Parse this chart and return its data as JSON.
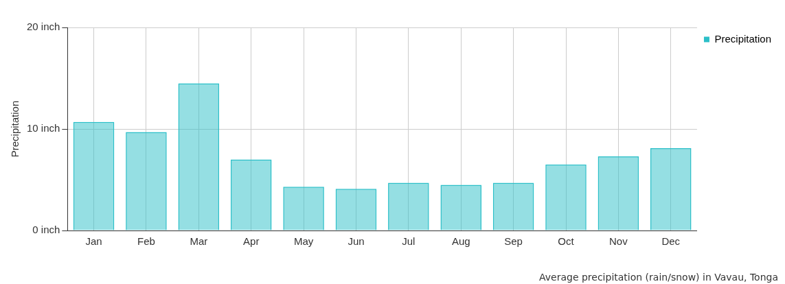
{
  "chart_data": {
    "type": "bar",
    "ylabel": "Precipitation",
    "categories": [
      "Jan",
      "Feb",
      "Mar",
      "Apr",
      "May",
      "Jun",
      "Jul",
      "Aug",
      "Sep",
      "Oct",
      "Nov",
      "Dec"
    ],
    "series": [
      {
        "name": "Precipitation",
        "color": "#2bbfc8",
        "values": [
          10.7,
          9.7,
          14.5,
          7.0,
          4.3,
          4.1,
          4.7,
          4.5,
          4.7,
          6.5,
          7.3,
          8.1
        ]
      }
    ],
    "ylim": [
      0,
      20
    ],
    "yticks": [
      {
        "value": 0,
        "label": "0 inch"
      },
      {
        "value": 10,
        "label": "10 inch"
      },
      {
        "value": 20,
        "label": "20 inch"
      }
    ],
    "grid": true,
    "legend": "top right",
    "annotations": [
      "Average precipitation (rain/snow) in Vavau, Tonga"
    ]
  }
}
